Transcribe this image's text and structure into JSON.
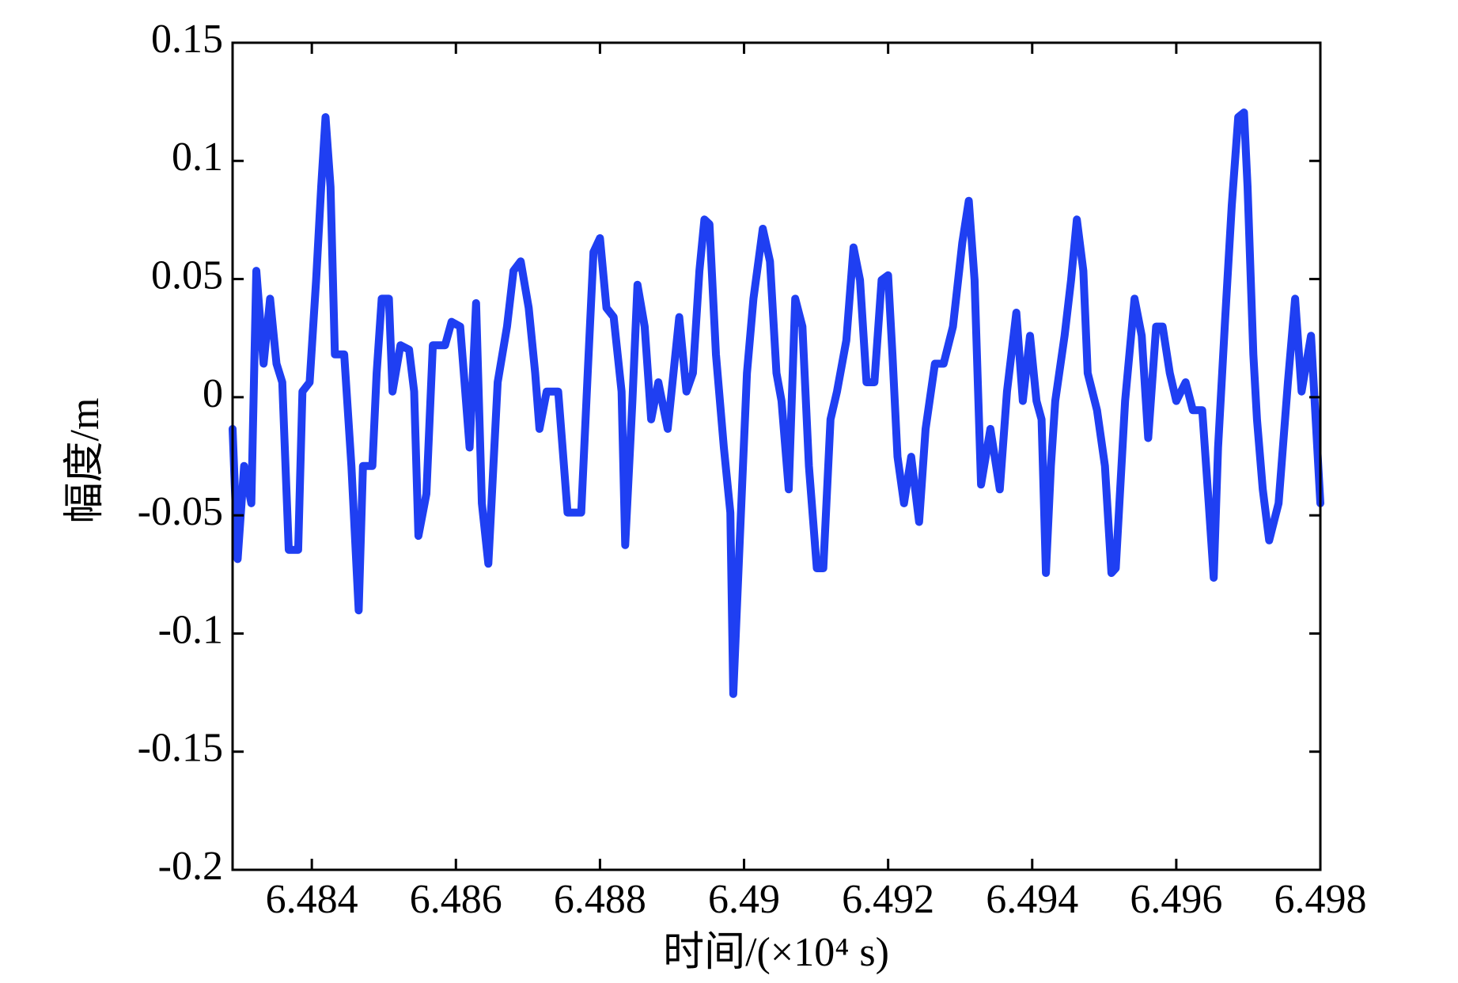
{
  "chart_data": {
    "type": "line",
    "xlabel": "时间/(×10⁴ s)",
    "ylabel": "幅度/m",
    "xlim": [
      6.4829,
      6.498
    ],
    "ylim": [
      -0.2,
      0.15
    ],
    "xticks": [
      6.484,
      6.486,
      6.488,
      6.49,
      6.492,
      6.494,
      6.496,
      6.498
    ],
    "yticks": [
      -0.2,
      -0.15,
      -0.1,
      -0.05,
      0,
      0.05,
      0.1,
      0.15
    ],
    "series": [
      {
        "color": "#1f3ff2",
        "x": [
          6.4829,
          6.48297,
          6.48306,
          6.48316,
          6.48323,
          6.48333,
          6.48342,
          6.48351,
          6.48359,
          6.48368,
          6.48381,
          6.48387,
          6.48397,
          6.48406,
          6.48413,
          6.48419,
          6.48426,
          6.48432,
          6.48445,
          6.48455,
          6.48465,
          6.48471,
          6.48484,
          6.4849,
          6.48497,
          6.48507,
          6.48512,
          6.48523,
          6.48535,
          6.48542,
          6.48548,
          6.48559,
          6.48568,
          6.48585,
          6.48594,
          6.48606,
          6.48613,
          6.48619,
          6.48628,
          6.48636,
          6.48645,
          6.48658,
          6.48671,
          6.4868,
          6.4869,
          6.48701,
          6.4871,
          6.48716,
          6.48726,
          6.48742,
          6.48748,
          6.48755,
          6.48774,
          6.48783,
          6.48791,
          6.488,
          6.48809,
          6.48819,
          6.4883,
          6.48835,
          6.48845,
          6.48852,
          6.48862,
          6.48871,
          6.48881,
          6.48894,
          6.48902,
          6.4891,
          6.4892,
          6.48929,
          6.48938,
          6.48945,
          6.48952,
          6.48961,
          6.48972,
          6.48981,
          6.48985,
          6.48994,
          6.49004,
          6.49013,
          6.49026,
          6.49036,
          6.49045,
          6.49052,
          6.49062,
          6.49071,
          6.49081,
          6.4909,
          6.49101,
          6.4911,
          6.4912,
          6.49129,
          6.49142,
          6.49152,
          6.49161,
          6.4917,
          6.49181,
          6.49191,
          6.492,
          6.49206,
          6.49213,
          6.49222,
          6.49232,
          6.49243,
          6.49252,
          6.49265,
          6.49277,
          6.4929,
          6.49303,
          6.49312,
          6.4932,
          6.49329,
          6.49342,
          6.49355,
          6.49365,
          6.49378,
          6.49387,
          6.49397,
          6.49406,
          6.49413,
          6.49419,
          6.49426,
          6.49432,
          6.49445,
          6.49454,
          6.49462,
          6.49471,
          6.49477,
          6.4949,
          6.49501,
          6.4951,
          6.49516,
          6.49529,
          6.49542,
          6.49552,
          6.49561,
          6.49572,
          6.49581,
          6.49591,
          6.496,
          6.49613,
          6.49623,
          6.49636,
          6.49645,
          6.49652,
          6.49658,
          6.49668,
          6.49677,
          6.49686,
          6.49694,
          6.49699,
          6.49707,
          6.49712,
          6.4972,
          6.49729,
          6.49742,
          6.49755,
          6.49765,
          6.49774,
          6.49787,
          6.498
        ],
        "values": [
          -0.0134,
          -0.0685,
          -0.0291,
          -0.0449,
          0.0535,
          0.0142,
          0.0417,
          0.0142,
          0.0063,
          -0.0646,
          -0.0646,
          0.0024,
          0.0063,
          0.0496,
          0.089,
          0.1185,
          0.089,
          0.0181,
          0.0181,
          -0.0291,
          -0.0902,
          -0.0291,
          -0.0291,
          0.0102,
          0.0417,
          0.0417,
          0.0024,
          0.022,
          0.0201,
          0.0024,
          -0.0587,
          -0.0409,
          0.022,
          0.022,
          0.0319,
          0.0299,
          0.0024,
          -0.0213,
          0.0398,
          -0.0449,
          -0.0705,
          0.0063,
          0.0299,
          0.0535,
          0.0575,
          0.0378,
          0.0102,
          -0.0134,
          0.0024,
          0.0024,
          -0.0213,
          -0.0488,
          -0.0488,
          0.0102,
          0.0614,
          0.0673,
          0.0378,
          0.0339,
          0.0024,
          -0.0626,
          -0.0016,
          0.0476,
          0.0299,
          -0.0094,
          0.0063,
          -0.0134,
          0.0102,
          0.0339,
          0.0024,
          0.0102,
          0.0535,
          0.0752,
          0.0732,
          0.0181,
          -0.0213,
          -0.0488,
          -0.1256,
          -0.0606,
          0.0102,
          0.0417,
          0.0713,
          0.0575,
          0.0102,
          -0.0016,
          -0.039,
          0.0417,
          0.0299,
          -0.0291,
          -0.0724,
          -0.0724,
          -0.0094,
          0.0024,
          0.024,
          0.0634,
          0.0496,
          0.0063,
          0.0063,
          0.0496,
          0.0516,
          0.0181,
          -0.0252,
          -0.0449,
          -0.0252,
          -0.0528,
          -0.0134,
          0.0142,
          0.0142,
          0.0299,
          0.0654,
          0.0831,
          0.0496,
          -0.037,
          -0.0134,
          -0.039,
          0.0024,
          0.0358,
          -0.0016,
          0.026,
          -0.0016,
          -0.0094,
          -0.0744,
          -0.0291,
          -0.0016,
          0.026,
          0.0496,
          0.0752,
          0.0535,
          0.0102,
          -0.0055,
          -0.0291,
          -0.0744,
          -0.0724,
          -0.0016,
          0.0417,
          0.026,
          -0.0173,
          0.0299,
          0.0299,
          0.0102,
          -0.0016,
          0.0063,
          -0.0055,
          -0.0055,
          -0.0449,
          -0.0764,
          -0.0213,
          0.0339,
          0.0811,
          0.1185,
          0.1205,
          0.089,
          0.0181,
          -0.0094,
          -0.039,
          -0.0606,
          -0.0449,
          0.0063,
          0.0417,
          0.0024,
          0.026,
          -0.0449
        ]
      }
    ]
  }
}
